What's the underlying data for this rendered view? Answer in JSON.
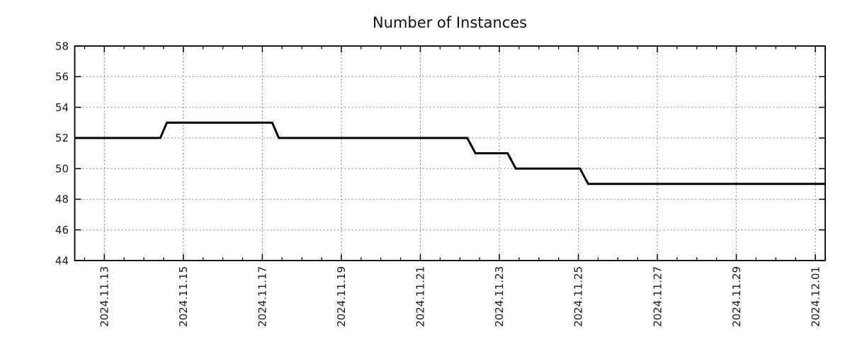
{
  "chart_data": {
    "type": "line",
    "line_style": "step",
    "title": "Number of Instances",
    "legend": "none",
    "x_axis": {
      "min": "2024-11-12 06:00",
      "max": "2024-12-01 06:00",
      "major_ticks": [
        {
          "label": "2024.11.13",
          "time": "2024-11-13 00:00"
        },
        {
          "label": "2024.11.15",
          "time": "2024-11-15 00:00"
        },
        {
          "label": "2024.11.17",
          "time": "2024-11-17 00:00"
        },
        {
          "label": "2024.11.19",
          "time": "2024-11-19 00:00"
        },
        {
          "label": "2024.11.21",
          "time": "2024-11-21 00:00"
        },
        {
          "label": "2024.11.23",
          "time": "2024-11-23 00:00"
        },
        {
          "label": "2024.11.25",
          "time": "2024-11-25 00:00"
        },
        {
          "label": "2024.11.27",
          "time": "2024-11-27 00:00"
        },
        {
          "label": "2024.11.29",
          "time": "2024-11-29 00:00"
        },
        {
          "label": "2024.12.01",
          "time": "2024-12-01 00:00"
        }
      ],
      "minor_tick_interval_hours": 12,
      "label_rotation_degrees": -90
    },
    "y_axis": {
      "min": 44,
      "max": 58,
      "ticks": [
        44,
        46,
        48,
        50,
        52,
        54,
        56,
        58
      ]
    },
    "series": [
      {
        "name": "Number of Instances",
        "color": "#000000",
        "points": [
          [
            "2024-11-12 06:00",
            52
          ],
          [
            "2024-11-14 10:00",
            52
          ],
          [
            "2024-11-14 14:00",
            53
          ],
          [
            "2024-11-17 06:00",
            53
          ],
          [
            "2024-11-17 10:00",
            52
          ],
          [
            "2024-11-22 04:30",
            52
          ],
          [
            "2024-11-22 09:30",
            51
          ],
          [
            "2024-11-23 05:00",
            51
          ],
          [
            "2024-11-23 10:00",
            50
          ],
          [
            "2024-11-25 01:00",
            50
          ],
          [
            "2024-11-25 06:00",
            49
          ],
          [
            "2024-12-01 06:00",
            49
          ]
        ]
      }
    ],
    "grid": {
      "show": true,
      "color": "#969696",
      "style": "dotted"
    },
    "colors": {
      "axis": "#000000",
      "text": "#1a1a1a",
      "background": "#ffffff",
      "line": "#000000"
    }
  }
}
